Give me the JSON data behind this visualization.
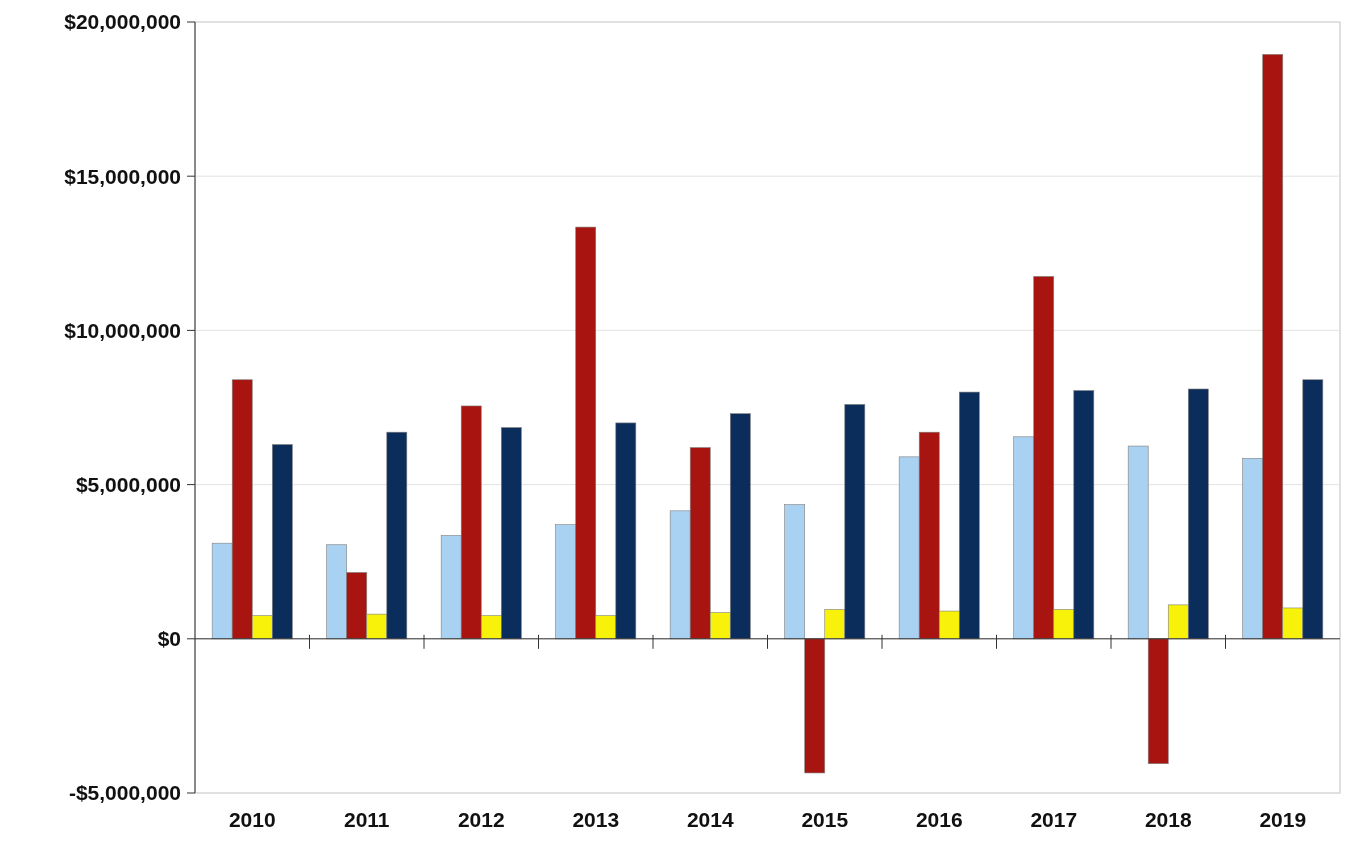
{
  "chart_data": {
    "type": "bar",
    "categories": [
      "2010",
      "2011",
      "2012",
      "2013",
      "2014",
      "2015",
      "2016",
      "2017",
      "2018",
      "2019"
    ],
    "series": [
      {
        "color": "#a9d1f2",
        "values": [
          3100000,
          3050000,
          3350000,
          3700000,
          4150000,
          4350000,
          5900000,
          6550000,
          6250000,
          5850000
        ]
      },
      {
        "color": "#a8140f",
        "values": [
          8400000,
          2150000,
          7550000,
          13350000,
          6200000,
          -4350000,
          6700000,
          11750000,
          -4050000,
          18950000
        ]
      },
      {
        "color": "#f8f20a",
        "values": [
          750000,
          800000,
          750000,
          750000,
          850000,
          950000,
          900000,
          950000,
          1100000,
          1000000
        ]
      },
      {
        "color": "#0b2d5c",
        "values": [
          6300000,
          6700000,
          6850000,
          7000000,
          7300000,
          7600000,
          8000000,
          8050000,
          8100000,
          8400000
        ]
      }
    ],
    "ylim": [
      -5000000,
      20000000
    ],
    "yticks": [
      {
        "value": -5000000,
        "label": "-$5,000,000"
      },
      {
        "value": 0,
        "label": "$0"
      },
      {
        "value": 5000000,
        "label": "$5,000,000"
      },
      {
        "value": 10000000,
        "label": "$10,000,000"
      },
      {
        "value": 15000000,
        "label": "$15,000,000"
      },
      {
        "value": 20000000,
        "label": "$20,000,000"
      }
    ],
    "grid": "y"
  }
}
